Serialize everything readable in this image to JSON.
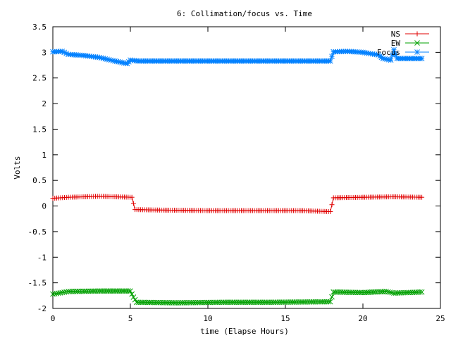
{
  "chart_data": {
    "type": "line",
    "title": "6: Collimation/focus vs. Time",
    "xlabel": "time (Elapse Hours)",
    "ylabel": "Volts",
    "xlim": [
      0,
      25
    ],
    "ylim": [
      -2,
      3.5
    ],
    "xticks": [
      0,
      5,
      10,
      15,
      20,
      25
    ],
    "yticks": [
      -2,
      -1.5,
      -1,
      -0.5,
      0,
      0.5,
      1,
      1.5,
      2,
      2.5,
      3,
      3.5
    ],
    "xtick_labels": [
      "0",
      "5",
      "10",
      "15",
      "20",
      "25"
    ],
    "ytick_labels": [
      "-2",
      "-1.5",
      "-1",
      "-0.5",
      "0",
      "0.5",
      "1",
      "1.5",
      "2",
      "2.5",
      "3",
      "3.5"
    ],
    "legend_position": "top-right",
    "series": [
      {
        "name": "NS",
        "color": "#e00000",
        "marker": "plus",
        "points": [
          [
            0,
            0.15
          ],
          [
            1,
            0.17
          ],
          [
            2,
            0.18
          ],
          [
            3,
            0.19
          ],
          [
            4,
            0.18
          ],
          [
            5.1,
            0.17
          ],
          [
            5.3,
            -0.07
          ],
          [
            7,
            -0.08
          ],
          [
            10,
            -0.09
          ],
          [
            13,
            -0.09
          ],
          [
            16,
            -0.09
          ],
          [
            17.9,
            -0.11
          ],
          [
            18.1,
            0.16
          ],
          [
            20,
            0.17
          ],
          [
            22,
            0.18
          ],
          [
            23.8,
            0.17
          ]
        ]
      },
      {
        "name": "EW",
        "color": "#00a000",
        "marker": "x",
        "points": [
          [
            0,
            -1.72
          ],
          [
            0.6,
            -1.69
          ],
          [
            1,
            -1.67
          ],
          [
            3,
            -1.66
          ],
          [
            5,
            -1.66
          ],
          [
            5.2,
            -1.78
          ],
          [
            5.4,
            -1.88
          ],
          [
            8,
            -1.89
          ],
          [
            11,
            -1.88
          ],
          [
            14,
            -1.88
          ],
          [
            17.9,
            -1.87
          ],
          [
            18.1,
            -1.68
          ],
          [
            20,
            -1.69
          ],
          [
            21.5,
            -1.67
          ],
          [
            22,
            -1.7
          ],
          [
            23.8,
            -1.68
          ]
        ]
      },
      {
        "name": "Focus",
        "color": "#0080ff",
        "marker": "star",
        "points": [
          [
            0,
            3.01
          ],
          [
            0.6,
            3.02
          ],
          [
            1,
            2.96
          ],
          [
            2,
            2.94
          ],
          [
            3,
            2.9
          ],
          [
            4,
            2.83
          ],
          [
            4.8,
            2.78
          ],
          [
            5,
            2.85
          ],
          [
            5.5,
            2.83
          ],
          [
            10,
            2.83
          ],
          [
            17.9,
            2.83
          ],
          [
            18.1,
            3.01
          ],
          [
            19,
            3.02
          ],
          [
            20,
            3.0
          ],
          [
            21,
            2.95
          ],
          [
            21.3,
            2.88
          ],
          [
            21.8,
            2.85
          ],
          [
            22,
            3.05
          ],
          [
            22.2,
            2.88
          ],
          [
            23,
            2.88
          ],
          [
            23.8,
            2.88
          ]
        ]
      }
    ]
  }
}
